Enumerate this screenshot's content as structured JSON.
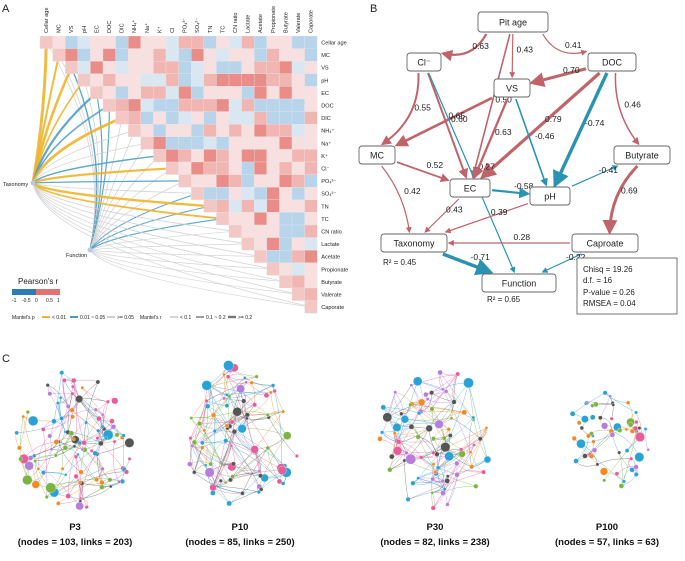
{
  "panels": {
    "a": "A",
    "b": "B",
    "c": "C"
  },
  "panel_a": {
    "variables": [
      "Cellar age",
      "MC",
      "VS",
      "pH",
      "EC",
      "DOC",
      "DIC",
      "NH₄⁺",
      "Na⁺",
      "K⁺",
      "Cl⁻",
      "PO₄³⁻",
      "SO₄²⁻",
      "TN",
      "TC",
      "CN ratio",
      "Lactate",
      "Acetate",
      "Propionate",
      "Butyrate",
      "Valerate",
      "Caporate"
    ],
    "col_labels": [
      "Cellar age",
      "MC",
      "VS",
      "pH",
      "EC",
      "DOC",
      "DIC",
      "NH₄⁺",
      "Na⁺",
      "K⁺",
      "Cl",
      "PO₄³⁻",
      "SO₄²⁻",
      "TN",
      "TC",
      "CN ratio",
      "Lactate",
      "Acetate",
      "Propionate",
      "Butyrate",
      "Valerate",
      "Caporate"
    ],
    "left_nodes": [
      "Taxonomy",
      "Function"
    ],
    "colorbar_title": "Pearson's r",
    "colorbar_ticks": [
      "-1",
      "-0.5",
      "0",
      "0.5",
      "1"
    ],
    "legend": {
      "mantel_p_label": "Mantel's p",
      "p_items": [
        "< 0.01",
        "0.01 ~ 0.05",
        ">= 0.05"
      ],
      "mantel_r_label": "Mantel's r",
      "r_items": [
        "< 0.1",
        "0.1 ~ 0.2",
        ">= 0.2"
      ]
    },
    "colors": {
      "p_lt_001": "#f0b42a",
      "p_001_005": "#4b9ec6",
      "p_ge_005": "#cfcfcf",
      "pos": "#e0736f",
      "neg": "#2c7bb6"
    }
  },
  "panel_b": {
    "nodes": {
      "pit_age": "Pit age",
      "doc": "DOC",
      "cl": "Cl⁻",
      "vs": "VS",
      "mc": "MC",
      "butyrate": "Butyrate",
      "ec": "EC",
      "ph": "pH",
      "taxonomy": "Taxonomy",
      "caproate": "Caproate",
      "function": "Function"
    },
    "r2_taxonomy": "R² = 0.45",
    "r2_function": "R² = 0.65",
    "paths": [
      {
        "from": "pit_age",
        "to": "cl",
        "coef": "0.63",
        "sign": "pos"
      },
      {
        "from": "pit_age",
        "to": "doc",
        "coef": "0.41",
        "sign": "pos"
      },
      {
        "from": "pit_age",
        "to": "ec",
        "coef": "0.50",
        "sign": "pos"
      },
      {
        "from": "pit_age",
        "to": "vs",
        "coef": "0.43",
        "sign": "pos"
      },
      {
        "from": "doc",
        "to": "vs",
        "coef": "0.70",
        "sign": "pos"
      },
      {
        "from": "doc",
        "to": "ec",
        "coef": "0.79",
        "sign": "pos"
      },
      {
        "from": "doc",
        "to": "ph",
        "coef": "-0.74",
        "sign": "neg"
      },
      {
        "from": "doc",
        "to": "butyrate",
        "coef": "0.46",
        "sign": "pos"
      },
      {
        "from": "cl",
        "to": "mc",
        "coef": "0.55",
        "sign": "pos"
      },
      {
        "from": "vs",
        "to": "mc",
        "coef": "0.65",
        "sign": "pos"
      },
      {
        "from": "cl",
        "to": "ec",
        "coef": "0.60",
        "sign": "pos"
      },
      {
        "from": "cl",
        "to": "function",
        "coef": "-0.27",
        "sign": "neg"
      },
      {
        "from": "vs",
        "to": "ec",
        "coef": "0.63",
        "sign": "pos"
      },
      {
        "from": "vs",
        "to": "ph",
        "coef": "-0.46",
        "sign": "neg"
      },
      {
        "from": "mc",
        "to": "ec",
        "coef": "0.52",
        "sign": "pos"
      },
      {
        "from": "mc",
        "to": "taxonomy",
        "coef": "0.42",
        "sign": "pos"
      },
      {
        "from": "ec",
        "to": "ph",
        "coef": "-0.58",
        "sign": "neg"
      },
      {
        "from": "ec",
        "to": "taxonomy",
        "coef": "0.43",
        "sign": "pos"
      },
      {
        "from": "ph",
        "to": "butyrate",
        "coef": "-0.41",
        "sign": "neg"
      },
      {
        "from": "ph",
        "to": "taxonomy",
        "coef": "0.39",
        "sign": "pos"
      },
      {
        "from": "butyrate",
        "to": "caproate",
        "coef": "0.69",
        "sign": "pos"
      },
      {
        "from": "caproate",
        "to": "taxonomy",
        "coef": "0.28",
        "sign": "pos"
      },
      {
        "from": "caproate",
        "to": "function",
        "coef": "-0.22",
        "sign": "neg"
      },
      {
        "from": "taxonomy",
        "to": "function",
        "coef": "-0.71",
        "sign": "neg"
      }
    ],
    "fit": {
      "chisq": "Chisq    = 19.26",
      "df": "d.f.    = 16",
      "p": "P-value = 0.26",
      "rmsea": "RMSEA = 0.04"
    }
  },
  "panel_c": {
    "networks": [
      {
        "name": "P3",
        "stats": "(nodes = 103, links = 203)",
        "nodes": 103,
        "links": 203
      },
      {
        "name": "P10",
        "stats": "(nodes = 85, links = 250)",
        "nodes": 85,
        "links": 250
      },
      {
        "name": "P30",
        "stats": "(nodes = 82, links = 238)",
        "nodes": 82,
        "links": 238
      },
      {
        "name": "P100",
        "stats": "(nodes = 57, links = 63)",
        "nodes": 57,
        "links": 63
      }
    ],
    "module_colors": [
      "#7cb342",
      "#b57edc",
      "#29a3d6",
      "#555555",
      "#e85c9a",
      "#f08a24"
    ]
  }
}
